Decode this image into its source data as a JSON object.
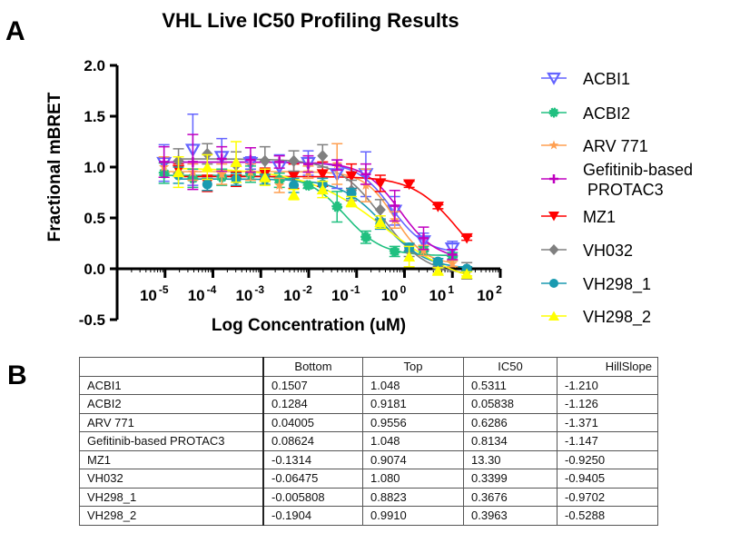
{
  "panels": {
    "a": "A",
    "b": "B"
  },
  "chart_data": {
    "type": "scatter",
    "title": "VHL Live IC50 Profiling Results",
    "xlabel": "Log Concentration (uM)",
    "ylabel": "Fractional mBRET",
    "xscale": "log",
    "xlim": [
      1e-06,
      100
    ],
    "ylim": [
      -0.5,
      2.0
    ],
    "x_ticks": [
      {
        "base": "10",
        "exp": "-5",
        "value": 1e-05
      },
      {
        "base": "10",
        "exp": "-4",
        "value": 0.0001
      },
      {
        "base": "10",
        "exp": "-3",
        "value": 0.001
      },
      {
        "base": "10",
        "exp": "-2",
        "value": 0.01
      },
      {
        "base": "10",
        "exp": "-1",
        "value": 0.1
      },
      {
        "base": "10",
        "exp": "0",
        "value": 1
      },
      {
        "base": "10",
        "exp": "1",
        "value": 10
      },
      {
        "base": "10",
        "exp": "2",
        "value": 100
      }
    ],
    "y_ticks": [
      {
        "label": "2.0",
        "value": 2.0
      },
      {
        "label": "1.5",
        "value": 1.5
      },
      {
        "label": "1.0",
        "value": 1.0
      },
      {
        "label": "0.5",
        "value": 0.5
      },
      {
        "label": "0.0",
        "value": 0.0
      },
      {
        "label": "-0.5",
        "value": -0.5
      }
    ],
    "grid": false,
    "legend_position": "right",
    "series": [
      {
        "name": "ACBI1",
        "color": "#6464ff",
        "marker": "triangle-down-open",
        "x": [
          9.54e-06,
          3.81e-05,
          0.000153,
          0.00061,
          0.00244,
          0.00977,
          0.0391,
          0.156,
          0.625,
          2.5,
          10
        ],
        "y": [
          1.04,
          1.17,
          1.1,
          1.04,
          1.0,
          1.04,
          0.93,
          0.93,
          0.57,
          0.27,
          0.2
        ],
        "err": [
          0.18,
          0.35,
          0.18,
          0.06,
          0.12,
          0.12,
          0.14,
          0.22,
          0.14,
          0.08,
          0.07
        ],
        "fit": {
          "bottom": 0.1507,
          "top": 1.048,
          "ic50": 0.5311,
          "hill": -1.21
        }
      },
      {
        "name": "ACBI2",
        "color": "#20c080",
        "marker": "star-filled",
        "x": [
          9.54e-06,
          3.81e-05,
          0.000153,
          0.00061,
          0.00244,
          0.00977,
          0.0391,
          0.156,
          0.625,
          2.5,
          10
        ],
        "y": [
          0.94,
          0.89,
          0.9,
          0.93,
          0.87,
          0.82,
          0.61,
          0.31,
          0.17,
          0.18,
          0.12
        ],
        "err": [
          0.1,
          0.09,
          0.08,
          0.08,
          0.07,
          0.03,
          0.15,
          0.06,
          0.05,
          0.04,
          0.04
        ],
        "fit": {
          "bottom": 0.1284,
          "top": 0.9181,
          "ic50": 0.05838,
          "hill": -1.126
        }
      },
      {
        "name": "ARV 771",
        "color": "#ff9f50",
        "marker": "star",
        "x": [
          9.54e-06,
          3.81e-05,
          0.000153,
          0.00061,
          0.00244,
          0.00977,
          0.0391,
          0.156,
          0.625,
          2.5,
          10
        ],
        "y": [
          1.0,
          0.95,
          0.93,
          0.95,
          0.82,
          0.95,
          1.03,
          0.82,
          0.48,
          0.18,
          0.05
        ],
        "err": [
          0.1,
          0.08,
          0.1,
          0.08,
          0.07,
          0.06,
          0.2,
          0.16,
          0.08,
          0.05,
          0.03
        ],
        "fit": {
          "bottom": 0.04005,
          "top": 0.9556,
          "ic50": 0.6286,
          "hill": -1.371
        }
      },
      {
        "name": "Gefitinib-based PROTAC3",
        "color": "#c000c0",
        "marker": "plus",
        "x": [
          9.54e-06,
          3.81e-05,
          0.000153,
          0.00061,
          0.00244,
          0.00977,
          0.0391,
          0.156,
          0.625,
          2.5,
          10
        ],
        "y": [
          1.05,
          1.05,
          1.08,
          1.07,
          1.05,
          1.03,
          1.02,
          0.93,
          0.62,
          0.3,
          0.14
        ],
        "err": [
          0.15,
          0.27,
          0.12,
          0.12,
          0.06,
          0.08,
          0.05,
          0.1,
          0.15,
          0.11,
          0.05
        ],
        "fit": {
          "bottom": 0.08624,
          "top": 1.048,
          "ic50": 0.8134,
          "hill": -1.147
        }
      },
      {
        "name": "MZ1",
        "color": "#ff0000",
        "marker": "triangle-down",
        "x": [
          1.91e-05,
          7.63e-05,
          0.000305,
          0.00122,
          0.00488,
          0.0195,
          0.0781,
          0.3125,
          1.25,
          5,
          20
        ],
        "y": [
          0.97,
          0.84,
          0.88,
          0.93,
          0.91,
          0.93,
          0.91,
          0.84,
          0.83,
          0.61,
          0.3
        ],
        "err": [
          0.06,
          0.08,
          0.07,
          0.06,
          0.12,
          0.12,
          0.12,
          0.08,
          0.03,
          0.02,
          0.02
        ],
        "fit": {
          "bottom": -0.1314,
          "top": 0.9074,
          "ic50": 13.3,
          "hill": -0.925
        }
      },
      {
        "name": "VH032",
        "color": "#808080",
        "marker": "diamond",
        "x": [
          1.91e-05,
          7.63e-05,
          0.000305,
          0.00122,
          0.00488,
          0.0195,
          0.0781,
          0.3125,
          1.25,
          5,
          20
        ],
        "y": [
          1.06,
          1.13,
          1.02,
          1.06,
          1.06,
          1.11,
          0.77,
          0.58,
          0.18,
          0.02,
          -0.02
        ],
        "err": [
          0.12,
          0.1,
          0.13,
          0.14,
          0.1,
          0.11,
          0.1,
          0.1,
          0.06,
          0.03,
          0.08
        ],
        "fit": {
          "bottom": -0.06475,
          "top": 1.08,
          "ic50": 0.3399,
          "hill": -0.9405
        }
      },
      {
        "name": "VH298_1",
        "color": "#1a9ab0",
        "marker": "circle",
        "x": [
          1.91e-05,
          7.63e-05,
          0.000305,
          0.00122,
          0.00488,
          0.0195,
          0.0781,
          0.3125,
          1.25,
          5,
          20
        ],
        "y": [
          0.92,
          0.83,
          0.88,
          0.88,
          0.82,
          0.83,
          0.74,
          0.44,
          0.21,
          0.07,
          0.0
        ],
        "err": [
          0.08,
          0.06,
          0.06,
          0.05,
          0.07,
          0.06,
          0.05,
          0.05,
          0.04,
          0.03,
          0.02
        ],
        "fit": {
          "bottom": -0.005808,
          "top": 0.8823,
          "ic50": 0.3676,
          "hill": -0.9702
        }
      },
      {
        "name": "VH298_2",
        "color": "#ffff00",
        "marker": "triangle-up",
        "x": [
          1.91e-05,
          7.63e-05,
          0.000305,
          0.00122,
          0.00488,
          0.0195,
          0.0781,
          0.3125,
          1.25,
          5,
          20
        ],
        "y": [
          0.95,
          1.0,
          1.05,
          0.9,
          0.73,
          0.78,
          0.66,
          0.46,
          0.12,
          -0.02,
          -0.05
        ],
        "err": [
          0.15,
          0.12,
          0.2,
          0.08,
          0.05,
          0.08,
          0.05,
          0.06,
          0.1,
          0.03,
          0.02
        ],
        "fit": {
          "bottom": -0.1904,
          "top": 0.991,
          "ic50": 0.3963,
          "hill": -0.5288
        }
      }
    ]
  },
  "table": {
    "headers": [
      "",
      "Bottom",
      "Top",
      "IC50",
      "HillSlope"
    ],
    "rows": [
      [
        "ACBI1",
        "0.1507",
        "1.048",
        "0.5311",
        "-1.210"
      ],
      [
        "ACBI2",
        "0.1284",
        "0.9181",
        "0.05838",
        "-1.126"
      ],
      [
        "ARV 771",
        "0.04005",
        "0.9556",
        "0.6286",
        "-1.371"
      ],
      [
        "Gefitinib-based PROTAC3",
        "0.08624",
        "1.048",
        "0.8134",
        "-1.147"
      ],
      [
        "MZ1",
        "-0.1314",
        "0.9074",
        "13.30",
        "-0.9250"
      ],
      [
        "VH032",
        "-0.06475",
        "1.080",
        "0.3399",
        "-0.9405"
      ],
      [
        "VH298_1",
        "-0.005808",
        "0.8823",
        "0.3676",
        "-0.9702"
      ],
      [
        "VH298_2",
        "-0.1904",
        "0.9910",
        "0.3963",
        "-0.5288"
      ]
    ]
  }
}
